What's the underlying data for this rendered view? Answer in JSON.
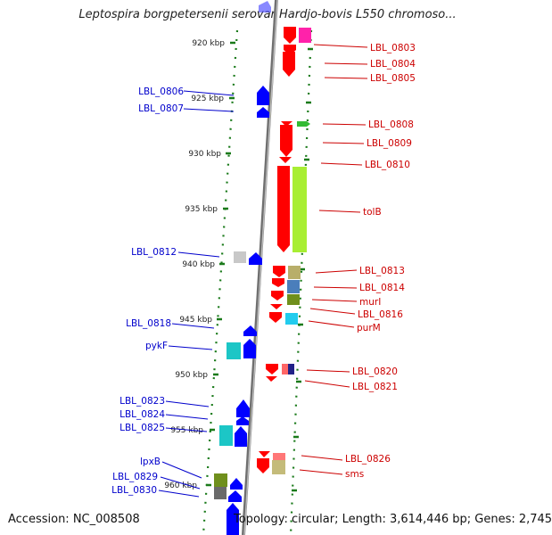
{
  "title": "Leptospira borgpetersenii serovar Hardjo-bovis L550 chromoso...",
  "accession": "Accession: NC_008508",
  "topology": "Topology: circular; Length: 3,614,446 bp; Genes: 2,745",
  "ruler": [
    "920 kbp",
    "925 kbp",
    "930 kbp",
    "935 kbp",
    "940 kbp",
    "945 kbp",
    "950 kbp",
    "955 kbp",
    "960 kbp"
  ],
  "left_labels": [
    "LBL_0806",
    "LBL_0807",
    "LBL_0812",
    "LBL_0818",
    "pykF",
    "LBL_0823",
    "LBL_0824",
    "LBL_0825",
    "lpxB",
    "LBL_0829",
    "LBL_0830"
  ],
  "right_labels": [
    "LBL_0803",
    "LBL_0804",
    "LBL_0805",
    "LBL_0808",
    "LBL_0809",
    "LBL_0810",
    "tolB",
    "LBL_0813",
    "LBL_0814",
    "murI",
    "LBL_0816",
    "purM",
    "LBL_0820",
    "LBL_0821",
    "LBL_0826",
    "sms"
  ],
  "colors": {
    "forward": "#ff0000",
    "reverse": "#0000ff",
    "axis": "#888888",
    "tick": "#1a7a1a",
    "left_label": "#0000cc",
    "right_label": "#cc0000"
  }
}
